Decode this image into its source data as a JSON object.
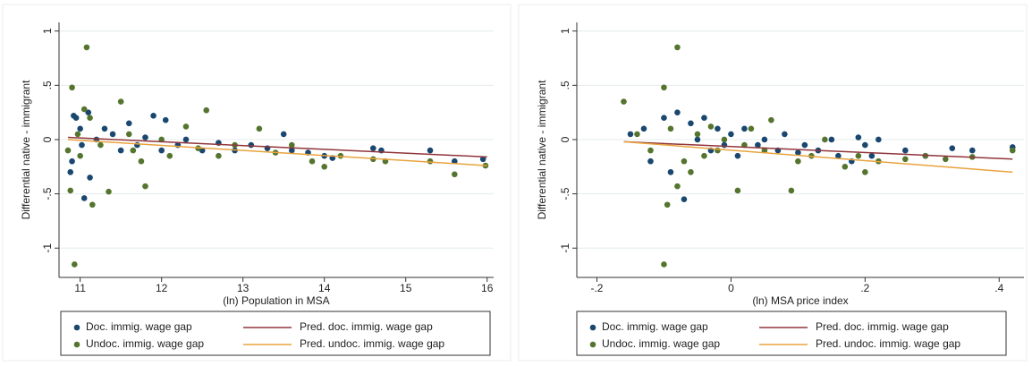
{
  "chart_data": [
    {
      "type": "scatter",
      "xlabel": "(ln) Population in MSA",
      "ylabel": "Differential native - immigrant",
      "xlim": [
        10.74,
        16.08
      ],
      "ylim": [
        -1.27,
        1.08
      ],
      "xticks": [
        11,
        12,
        13,
        14,
        15,
        16
      ],
      "yticks": [
        -1,
        {
          "value": -0.5,
          "label": "-.5"
        },
        0,
        {
          "value": 0.5,
          "label": ".5"
        },
        1
      ],
      "grid": true,
      "legend": "bottom",
      "series": [
        {
          "name": "Doc. immig. wage gap",
          "color": "#1a476f",
          "kind": "markers",
          "x": [
            10.88,
            10.9,
            10.92,
            10.95,
            11.0,
            11.02,
            11.05,
            11.1,
            11.12,
            11.2,
            11.3,
            11.4,
            11.5,
            11.6,
            11.7,
            11.8,
            11.9,
            12.0,
            12.05,
            12.2,
            12.3,
            12.5,
            12.7,
            12.9,
            13.1,
            13.3,
            13.5,
            13.6,
            13.8,
            14.0,
            14.1,
            14.6,
            14.7,
            15.3,
            15.6,
            15.95
          ],
          "values": [
            -0.3,
            -0.2,
            0.22,
            0.2,
            0.1,
            -0.05,
            -0.54,
            0.25,
            -0.35,
            0.0,
            0.1,
            0.05,
            -0.1,
            0.15,
            -0.05,
            0.02,
            0.22,
            -0.1,
            0.18,
            -0.05,
            0.0,
            -0.1,
            -0.03,
            -0.1,
            -0.05,
            -0.08,
            0.05,
            -0.1,
            -0.12,
            -0.15,
            -0.17,
            -0.08,
            -0.1,
            -0.1,
            -0.2,
            -0.18
          ]
        },
        {
          "name": "Undoc. immig. wage gap",
          "color": "#55752f",
          "kind": "markers",
          "x": [
            10.85,
            10.88,
            10.9,
            10.93,
            10.97,
            11.0,
            11.05,
            11.08,
            11.12,
            11.15,
            11.25,
            11.35,
            11.5,
            11.6,
            11.65,
            11.75,
            11.8,
            12.0,
            12.1,
            12.3,
            12.45,
            12.55,
            12.7,
            12.9,
            13.2,
            13.4,
            13.6,
            13.85,
            14.0,
            14.2,
            14.6,
            14.75,
            15.3,
            15.6,
            15.98
          ],
          "values": [
            -0.1,
            -0.47,
            0.48,
            -1.15,
            0.05,
            -0.15,
            0.28,
            0.85,
            0.2,
            -0.6,
            -0.05,
            -0.48,
            0.35,
            0.05,
            -0.1,
            -0.2,
            -0.43,
            0.0,
            -0.15,
            0.12,
            -0.08,
            0.27,
            -0.15,
            -0.05,
            0.1,
            -0.12,
            -0.05,
            -0.2,
            -0.25,
            -0.15,
            -0.18,
            -0.2,
            -0.2,
            -0.32,
            -0.24
          ]
        },
        {
          "name": "Pred. doc. immig. wage gap",
          "color": "#90353b",
          "kind": "line",
          "x": [
            10.85,
            16.0
          ],
          "values": [
            0.02,
            -0.16
          ]
        },
        {
          "name": "Pred. undoc. immig. wage gap",
          "color": "#e8a33d",
          "kind": "line",
          "x": [
            10.85,
            16.0
          ],
          "values": [
            0.0,
            -0.24
          ]
        }
      ]
    },
    {
      "type": "scatter",
      "xlabel": "(ln) MSA price index",
      "ylabel": "Differential native - immigrant",
      "xlim": [
        -0.23,
        0.437
      ],
      "ylim": [
        -1.27,
        1.08
      ],
      "xticks": [
        {
          "value": -0.2,
          "label": "-.2"
        },
        0,
        {
          "value": 0.2,
          "label": ".2"
        },
        {
          "value": 0.4,
          "label": ".4"
        }
      ],
      "yticks": [
        -1,
        {
          "value": -0.5,
          "label": "-.5"
        },
        0,
        {
          "value": 0.5,
          "label": ".5"
        },
        1
      ],
      "grid": true,
      "legend": "bottom",
      "series": [
        {
          "name": "Doc. immig. wage gap",
          "color": "#1a476f",
          "kind": "markers",
          "x": [
            -0.15,
            -0.13,
            -0.12,
            -0.1,
            -0.09,
            -0.08,
            -0.07,
            -0.06,
            -0.05,
            -0.04,
            -0.03,
            -0.02,
            -0.01,
            0.0,
            0.01,
            0.02,
            0.04,
            0.05,
            0.07,
            0.08,
            0.1,
            0.11,
            0.13,
            0.15,
            0.16,
            0.18,
            0.19,
            0.2,
            0.21,
            0.22,
            0.26,
            0.29,
            0.33,
            0.36,
            0.42
          ],
          "values": [
            0.05,
            0.1,
            -0.2,
            0.2,
            -0.3,
            0.25,
            -0.55,
            0.15,
            0.0,
            0.2,
            -0.1,
            0.1,
            -0.05,
            0.05,
            -0.15,
            0.1,
            -0.05,
            0.0,
            -0.1,
            0.05,
            -0.12,
            -0.05,
            -0.1,
            0.0,
            -0.15,
            -0.2,
            0.02,
            -0.05,
            -0.15,
            0.0,
            -0.1,
            -0.15,
            -0.08,
            -0.1,
            -0.07
          ]
        },
        {
          "name": "Undoc. immig. wage gap",
          "color": "#55752f",
          "kind": "markers",
          "x": [
            -0.16,
            -0.14,
            -0.12,
            -0.1,
            -0.1,
            -0.095,
            -0.09,
            -0.08,
            -0.08,
            -0.07,
            -0.06,
            -0.05,
            -0.04,
            -0.03,
            -0.02,
            -0.01,
            0.01,
            0.02,
            0.03,
            0.05,
            0.06,
            0.09,
            0.1,
            0.12,
            0.14,
            0.17,
            0.19,
            0.2,
            0.22,
            0.26,
            0.29,
            0.32,
            0.36,
            0.42
          ],
          "values": [
            0.35,
            0.05,
            -0.1,
            0.48,
            -1.15,
            -0.6,
            0.1,
            0.85,
            -0.43,
            -0.2,
            -0.3,
            0.05,
            -0.15,
            0.12,
            -0.1,
            0.0,
            -0.47,
            -0.05,
            0.1,
            -0.1,
            0.18,
            -0.47,
            -0.2,
            -0.15,
            0.0,
            -0.25,
            -0.15,
            -0.3,
            -0.2,
            -0.18,
            -0.15,
            -0.18,
            -0.16,
            -0.1
          ]
        },
        {
          "name": "Pred. doc. immig. wage gap",
          "color": "#90353b",
          "kind": "line",
          "x": [
            -0.16,
            0.42
          ],
          "values": [
            -0.02,
            -0.18
          ]
        },
        {
          "name": "Pred. undoc. immig. wage gap",
          "color": "#e8a33d",
          "kind": "line",
          "x": [
            -0.16,
            0.42
          ],
          "values": [
            -0.02,
            -0.3
          ]
        }
      ]
    }
  ]
}
